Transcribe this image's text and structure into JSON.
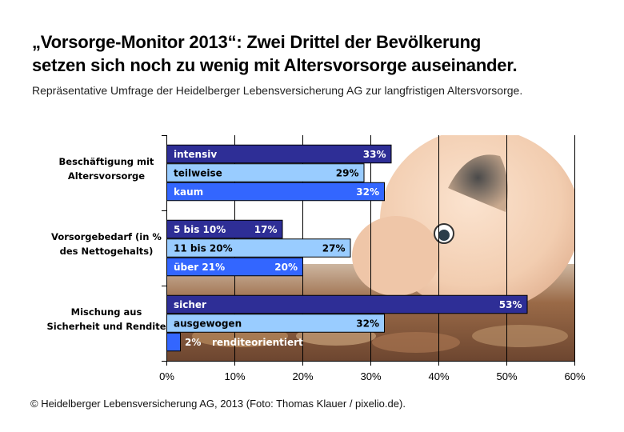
{
  "header": {
    "title_line1": "„Vorsorge-Monitor 2013“: Zwei Drittel der Bevölkerung",
    "title_line2": "setzen sich noch zu wenig mit Altersvorsorge auseinander.",
    "subtitle": "Repräsentative Umfrage der Heidelberger Lebensversicherung AG zur langfristigen Altersvorsorge."
  },
  "footer": "© Heidelberger Lebensversicherung AG, 2013 (Foto: Thomas Klauer / pixelio.de).",
  "colors": {
    "dark": "#2e2e96",
    "light": "#99ccff",
    "mid": "#3366ff"
  },
  "chart_data": {
    "type": "bar",
    "orientation": "horizontal",
    "title": "„Vorsorge-Monitor 2013“: Zwei Drittel der Bevölkerung setzen sich noch zu wenig mit Altersvorsorge auseinander.",
    "xlabel": "",
    "ylabel": "",
    "xlim": [
      0,
      60
    ],
    "x_ticks": [
      "0%",
      "10%",
      "20%",
      "30%",
      "40%",
      "50%",
      "60%"
    ],
    "grid": "vertical",
    "background": "photo of piggy bank on coins",
    "groups": [
      {
        "label_lines": [
          "Beschäftigung mit",
          "Altersvorsorge"
        ],
        "bars": [
          {
            "label": "intensiv",
            "value": 33,
            "value_label": "33%",
            "color": "dark"
          },
          {
            "label": "teilweise",
            "value": 29,
            "value_label": "29%",
            "color": "light"
          },
          {
            "label": "kaum",
            "value": 32,
            "value_label": "32%",
            "color": "mid"
          }
        ]
      },
      {
        "label_lines": [
          "Vorsorgebedarf (in %",
          "des Nettogehalts)"
        ],
        "bars": [
          {
            "label": "5 bis 10%",
            "value": 17,
            "value_label": "17%",
            "color": "dark"
          },
          {
            "label": "11 bis 20%",
            "value": 27,
            "value_label": "27%",
            "color": "light"
          },
          {
            "label": "über 21%",
            "value": 20,
            "value_label": "20%",
            "color": "mid"
          }
        ]
      },
      {
        "label_lines": [
          "Mischung aus",
          "Sicherheit und Rendite"
        ],
        "bars": [
          {
            "label": "sicher",
            "value": 53,
            "value_label": "53%",
            "color": "dark"
          },
          {
            "label": "ausgewogen",
            "value": 32,
            "value_label": "32%",
            "color": "light"
          },
          {
            "label": "renditeorientiert",
            "value": 2,
            "value_label": "2%",
            "color": "mid"
          }
        ]
      }
    ]
  }
}
